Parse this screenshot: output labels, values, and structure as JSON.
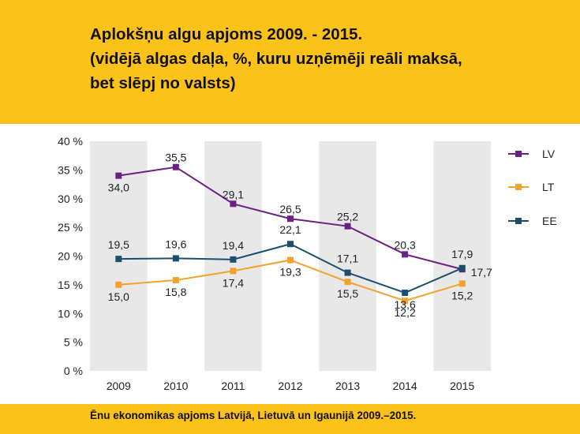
{
  "header": {
    "title_lines": [
      "Aplokšņu algu apjoms 2009. - 2015.",
      "(vidējā algas daļa, %, kuru uzņēmēji reāli maksā,",
      "bet slēpj no valsts)"
    ]
  },
  "footer": {
    "caption": "Ēnu ekonomikas apjoms  Latvijā, Lietuvā un Igaunijā  2009.–2015."
  },
  "colors": {
    "accent": "#FBC21A",
    "band": "#E8E8E8",
    "LV": "#6B2183",
    "LT": "#F4A12D",
    "EE": "#1C4F6E"
  },
  "chart_data": {
    "type": "line",
    "categories": [
      "2009",
      "2010",
      "2011",
      "2012",
      "2013",
      "2014",
      "2015"
    ],
    "ylim": [
      0,
      40
    ],
    "y_ticks": [
      "0 %",
      "5 %",
      "10 %",
      "15 %",
      "20 %",
      "25 %",
      "30 %",
      "35 %",
      "40 %"
    ],
    "legend_position": "right",
    "grid": false,
    "series": [
      {
        "name": "LV",
        "values": [
          34.0,
          35.5,
          29.1,
          26.5,
          25.2,
          20.3,
          17.7
        ],
        "labels": [
          "34,0",
          "35,5",
          "29,1",
          "26,5",
          "25,2",
          "20,3",
          ""
        ]
      },
      {
        "name": "LT",
        "values": [
          15.0,
          15.8,
          17.4,
          19.3,
          15.5,
          12.2,
          15.2
        ],
        "labels": [
          "15,0",
          "15,8",
          "17,4",
          "19,3",
          "15,5",
          "12,2",
          "15,2"
        ]
      },
      {
        "name": "EE",
        "values": [
          19.5,
          19.6,
          19.4,
          22.1,
          17.1,
          13.6,
          17.9
        ],
        "labels": [
          "19,5",
          "19,6",
          "19,4",
          "22,1",
          "17,1",
          "13,6",
          "17,9"
        ]
      }
    ],
    "extra_labels": [
      {
        "series": "LV",
        "index": 6,
        "text": "17,7"
      }
    ]
  }
}
